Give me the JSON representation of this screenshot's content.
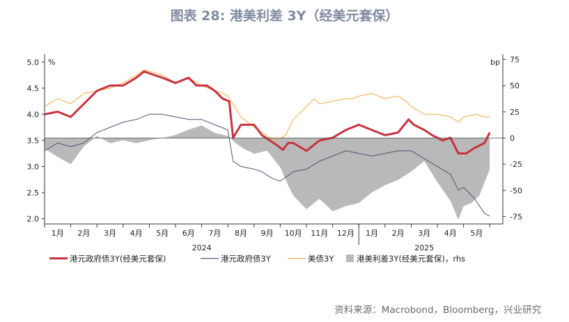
{
  "title": "图表 28: 港美利差 3Y（经美元套保）",
  "source": "资料来源：Macrobond，Bloomberg，兴业研究",
  "chart_data": {
    "type": "line",
    "left_axis": {
      "unit": "%",
      "ylim": [
        1.9,
        5.15
      ],
      "ticks": [
        2.0,
        2.5,
        3.0,
        3.5,
        4.0,
        4.5,
        5.0
      ],
      "tick_labels": [
        "2.0",
        "2.5",
        "3.0",
        "3.5",
        "4.0",
        "4.5",
        "5.0"
      ]
    },
    "right_axis": {
      "unit": "bp",
      "ylim": [
        -82,
        80
      ],
      "ticks": [
        75,
        50,
        25,
        0,
        -25,
        -50,
        -75
      ],
      "tick_labels": [
        "75",
        "50",
        "25",
        "0",
        "-25",
        "-50",
        "-75"
      ]
    },
    "x_range": [
      0,
      17.5
    ],
    "months": [
      {
        "label": "1月",
        "x": 0.5
      },
      {
        "label": "2月",
        "x": 1.5
      },
      {
        "label": "3月",
        "x": 2.5
      },
      {
        "label": "4月",
        "x": 3.5
      },
      {
        "label": "5月",
        "x": 4.5
      },
      {
        "label": "6月",
        "x": 5.5
      },
      {
        "label": "7月",
        "x": 6.5
      },
      {
        "label": "8月",
        "x": 7.5
      },
      {
        "label": "9月",
        "x": 8.5
      },
      {
        "label": "10月",
        "x": 9.5
      },
      {
        "label": "11月",
        "x": 10.5
      },
      {
        "label": "12月",
        "x": 11.5
      },
      {
        "label": "1月",
        "x": 12.5
      },
      {
        "label": "2月",
        "x": 13.5
      },
      {
        "label": "3月",
        "x": 14.5
      },
      {
        "label": "4月",
        "x": 15.5
      },
      {
        "label": "5月",
        "x": 16.5
      }
    ],
    "years": [
      {
        "label": "2024",
        "x": 6.0
      },
      {
        "label": "2025",
        "x": 14.5
      }
    ],
    "series": [
      {
        "name": "港元政府债3Y(经美元套保)",
        "axis": "left",
        "style": "line",
        "color": "#c8323e",
        "x": [
          0,
          0.5,
          1,
          1.5,
          2,
          2.5,
          3,
          3.5,
          3.8,
          4.2,
          4.5,
          5,
          5.5,
          5.8,
          6.2,
          6.5,
          6.8,
          7.05,
          7.2,
          7.5,
          8,
          8.3,
          8.6,
          8.9,
          9.1,
          9.3,
          9.5,
          10,
          10.5,
          11,
          11.5,
          12,
          12.5,
          13,
          13.5,
          13.9,
          14.1,
          14.5,
          14.8,
          15,
          15.2,
          15.5,
          15.8,
          16.1,
          16.4,
          16.8,
          17
        ],
        "values": [
          4.0,
          4.05,
          3.95,
          4.2,
          4.45,
          4.55,
          4.55,
          4.7,
          4.82,
          4.75,
          4.7,
          4.6,
          4.7,
          4.55,
          4.55,
          4.45,
          4.3,
          4.25,
          3.55,
          3.8,
          3.8,
          3.6,
          3.5,
          3.4,
          3.32,
          3.45,
          3.45,
          3.3,
          3.5,
          3.55,
          3.7,
          3.8,
          3.7,
          3.6,
          3.65,
          3.9,
          3.8,
          3.7,
          3.6,
          3.55,
          3.5,
          3.55,
          3.25,
          3.25,
          3.35,
          3.45,
          3.65
        ]
      },
      {
        "name": "港元政府债3Y",
        "axis": "left",
        "style": "line",
        "color": "#4a5578",
        "x": [
          0,
          0.5,
          1,
          1.5,
          2,
          2.5,
          3,
          3.5,
          4,
          4.5,
          5,
          5.5,
          6,
          6.5,
          7,
          7.2,
          7.5,
          8,
          8.3,
          8.6,
          8.8,
          9,
          9.5,
          10,
          10.5,
          11,
          11.5,
          12,
          12.5,
          13,
          13.5,
          14,
          14.5,
          15,
          15.5,
          15.8,
          16,
          16.4,
          16.6,
          16.8,
          17
        ],
        "values": [
          3.3,
          3.45,
          3.38,
          3.45,
          3.65,
          3.75,
          3.85,
          3.9,
          4.0,
          4.0,
          3.95,
          3.9,
          3.9,
          3.8,
          3.7,
          3.1,
          3.0,
          2.95,
          2.9,
          2.8,
          2.75,
          2.72,
          2.9,
          2.95,
          3.1,
          3.2,
          3.3,
          3.25,
          3.2,
          3.25,
          3.3,
          3.3,
          3.15,
          3.0,
          2.85,
          2.55,
          2.6,
          2.4,
          2.25,
          2.1,
          2.05
        ]
      },
      {
        "name": "美债3Y",
        "axis": "left",
        "style": "line",
        "color": "#f0aa3c",
        "x": [
          0,
          0.5,
          1,
          1.5,
          2,
          2.5,
          3,
          3.5,
          3.8,
          4.2,
          4.5,
          5,
          5.5,
          6,
          6.5,
          6.8,
          7,
          7.5,
          8,
          8.3,
          8.6,
          8.9,
          9.2,
          9.5,
          10,
          10.3,
          10.5,
          11,
          11.5,
          11.8,
          12,
          12.5,
          13,
          13.5,
          13.8,
          14,
          14.5,
          15,
          15.5,
          15.8,
          16,
          16.5,
          16.8,
          17
        ],
        "values": [
          4.15,
          4.3,
          4.2,
          4.4,
          4.45,
          4.5,
          4.6,
          4.75,
          4.85,
          4.8,
          4.75,
          4.6,
          4.7,
          4.55,
          4.45,
          4.4,
          4.35,
          3.95,
          3.75,
          3.65,
          3.55,
          3.5,
          3.6,
          3.9,
          4.15,
          4.3,
          4.2,
          4.25,
          4.3,
          4.3,
          4.35,
          4.4,
          4.3,
          4.35,
          4.25,
          4.15,
          4.0,
          4.0,
          3.95,
          3.85,
          3.95,
          4.0,
          3.95,
          3.95
        ]
      },
      {
        "name": "港美利差3Y(经美元套保), rhs",
        "axis": "right",
        "style": "area",
        "color": "#b9b9b9",
        "x": [
          0,
          0.5,
          1,
          1.5,
          2,
          2.5,
          3,
          3.5,
          4,
          4.5,
          5,
          5.5,
          6,
          6.5,
          7,
          7.3,
          7.6,
          8,
          8.5,
          9,
          9.3,
          9.5,
          10,
          10.5,
          11,
          11.5,
          12,
          12.5,
          13,
          13.5,
          14,
          14.5,
          15,
          15.5,
          15.8,
          16,
          16.3,
          16.6,
          17
        ],
        "values": [
          -10,
          -18,
          -25,
          -8,
          2,
          -5,
          -2,
          -5,
          -2,
          0,
          3,
          8,
          12,
          5,
          2,
          -5,
          -10,
          -15,
          -12,
          -28,
          -45,
          -55,
          -68,
          -58,
          -70,
          -65,
          -62,
          -52,
          -45,
          -40,
          -32,
          -22,
          -42,
          -60,
          -78,
          -65,
          -62,
          -55,
          -30
        ]
      }
    ]
  },
  "legend": [
    {
      "label": "港元政府债3Y(经美元套保)"
    },
    {
      "label": "港元政府债3Y"
    },
    {
      "label": "美债3Y"
    },
    {
      "label": "港美利差3Y(经美元套保)，rhs"
    }
  ]
}
